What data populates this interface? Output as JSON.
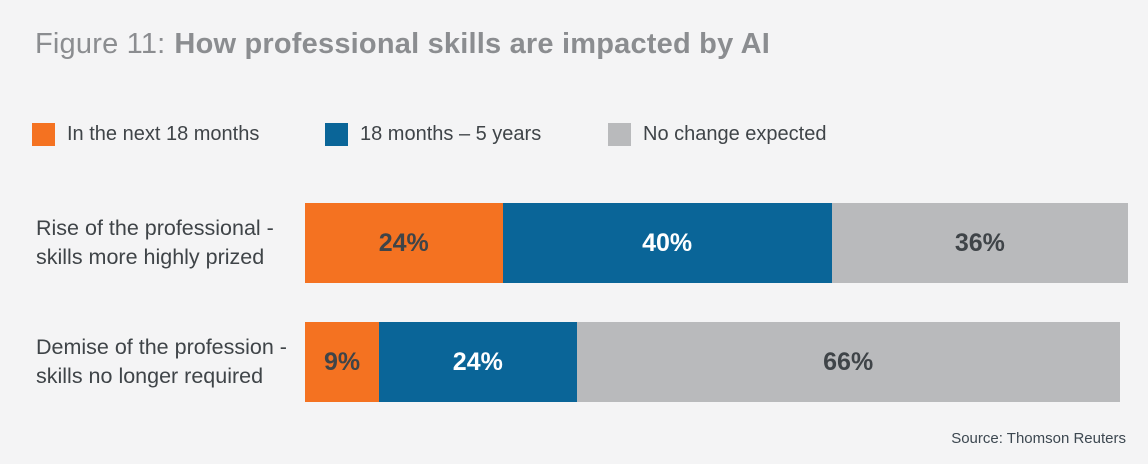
{
  "title": {
    "prefix": "Figure 11:",
    "main": "How professional skills are impacted by AI"
  },
  "legend": {
    "items": [
      {
        "label": "In the next 18 months",
        "color": "#F47221"
      },
      {
        "label": "18 months – 5 years",
        "color": "#0A6598"
      },
      {
        "label": "No change expected",
        "color": "#B9BABC"
      }
    ]
  },
  "source": "Source: Thomson Reuters",
  "colors": {
    "background": "#F4F4F5",
    "title_text": "#8B8D90",
    "body_text": "#3F4448",
    "orange": "#F47221",
    "blue": "#0A6598",
    "gray": "#B9BABC",
    "white": "#FFFFFF"
  },
  "chart_data": {
    "type": "bar",
    "orientation": "horizontal",
    "stacked": true,
    "unit": "%",
    "title": "Figure 11: How professional skills are impacted by AI",
    "categories": [
      "Rise of the professional - skills more highly prized",
      "Demise of the profession - skills no longer required"
    ],
    "category_lines": [
      [
        "Rise of the professional -",
        "skills more highly prized"
      ],
      [
        "Demise of the profession -",
        "skills no longer required"
      ]
    ],
    "series": [
      {
        "name": "In the next 18 months",
        "color": "#F47221",
        "label_color": "#3F4448",
        "values": [
          24,
          9
        ]
      },
      {
        "name": "18 months – 5 years",
        "color": "#0A6598",
        "label_color": "#FFFFFF",
        "values": [
          40,
          24
        ]
      },
      {
        "name": "No change expected",
        "color": "#B9BABC",
        "label_color": "#3F4448",
        "values": [
          36,
          66
        ]
      }
    ],
    "xlim": [
      0,
      100
    ],
    "legend_position": "top",
    "data_labels": true,
    "source": "Source: Thomson Reuters"
  }
}
